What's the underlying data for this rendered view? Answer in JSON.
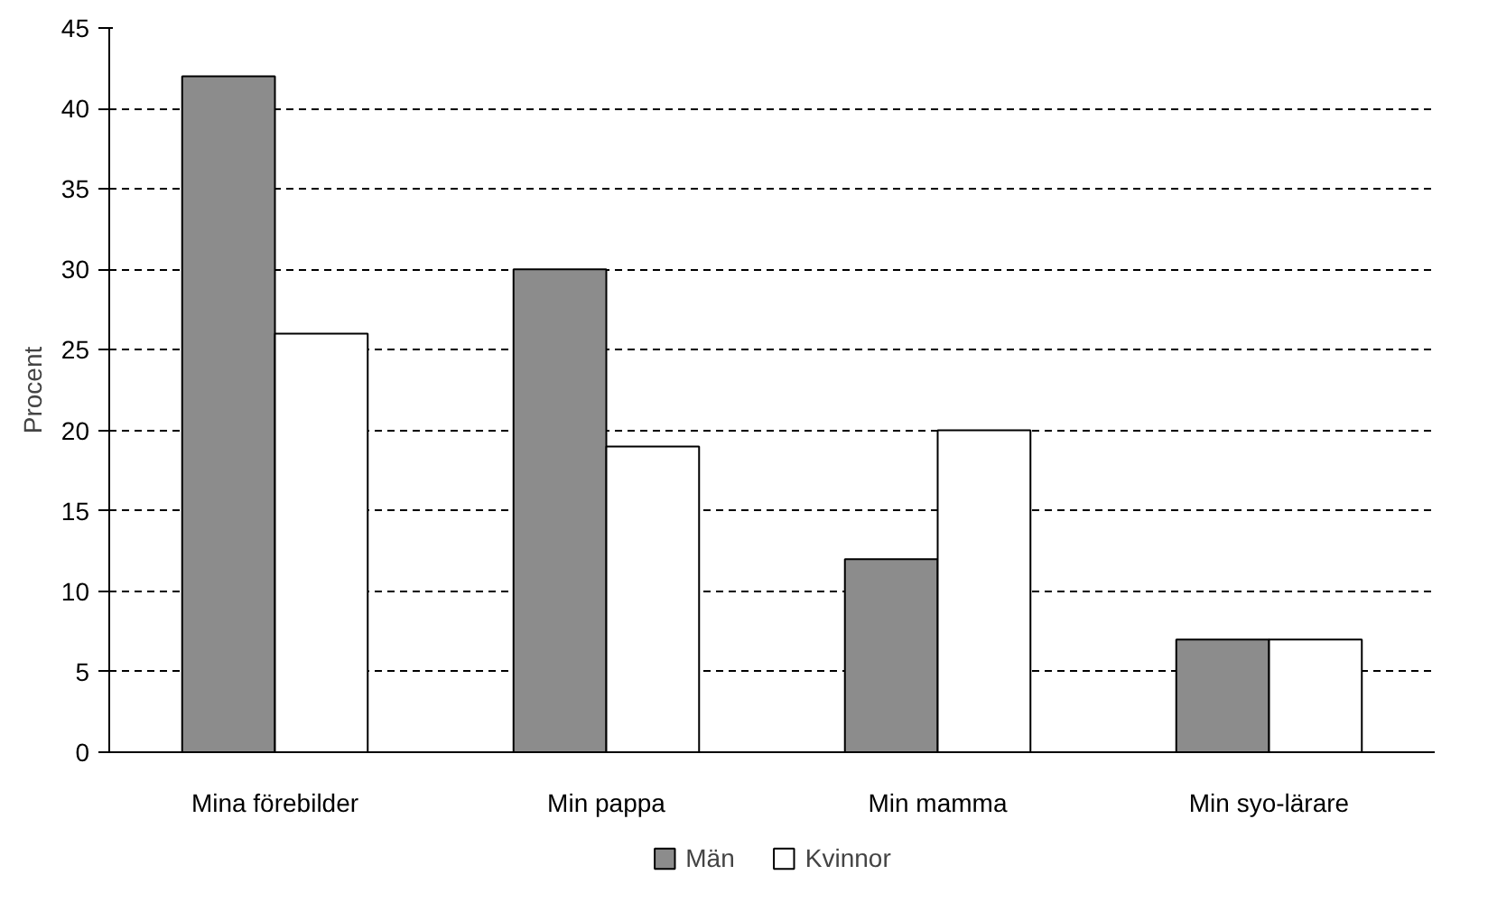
{
  "chart_data": {
    "type": "bar",
    "ylabel": "Procent",
    "categories": [
      "Mina förebilder",
      "Min pappa",
      "Min mamma",
      "Min syo-lärare"
    ],
    "series": [
      {
        "name": "Män",
        "color": "#8c8c8c",
        "values": [
          42,
          30,
          12,
          7
        ]
      },
      {
        "name": "Kvinnor",
        "color": "#ffffff",
        "values": [
          26,
          19,
          20,
          7
        ]
      }
    ],
    "ylim": [
      0,
      45
    ],
    "yticks": [
      0,
      5,
      10,
      15,
      20,
      25,
      30,
      35,
      40,
      45
    ],
    "grid": "y",
    "legend": "bottom"
  }
}
